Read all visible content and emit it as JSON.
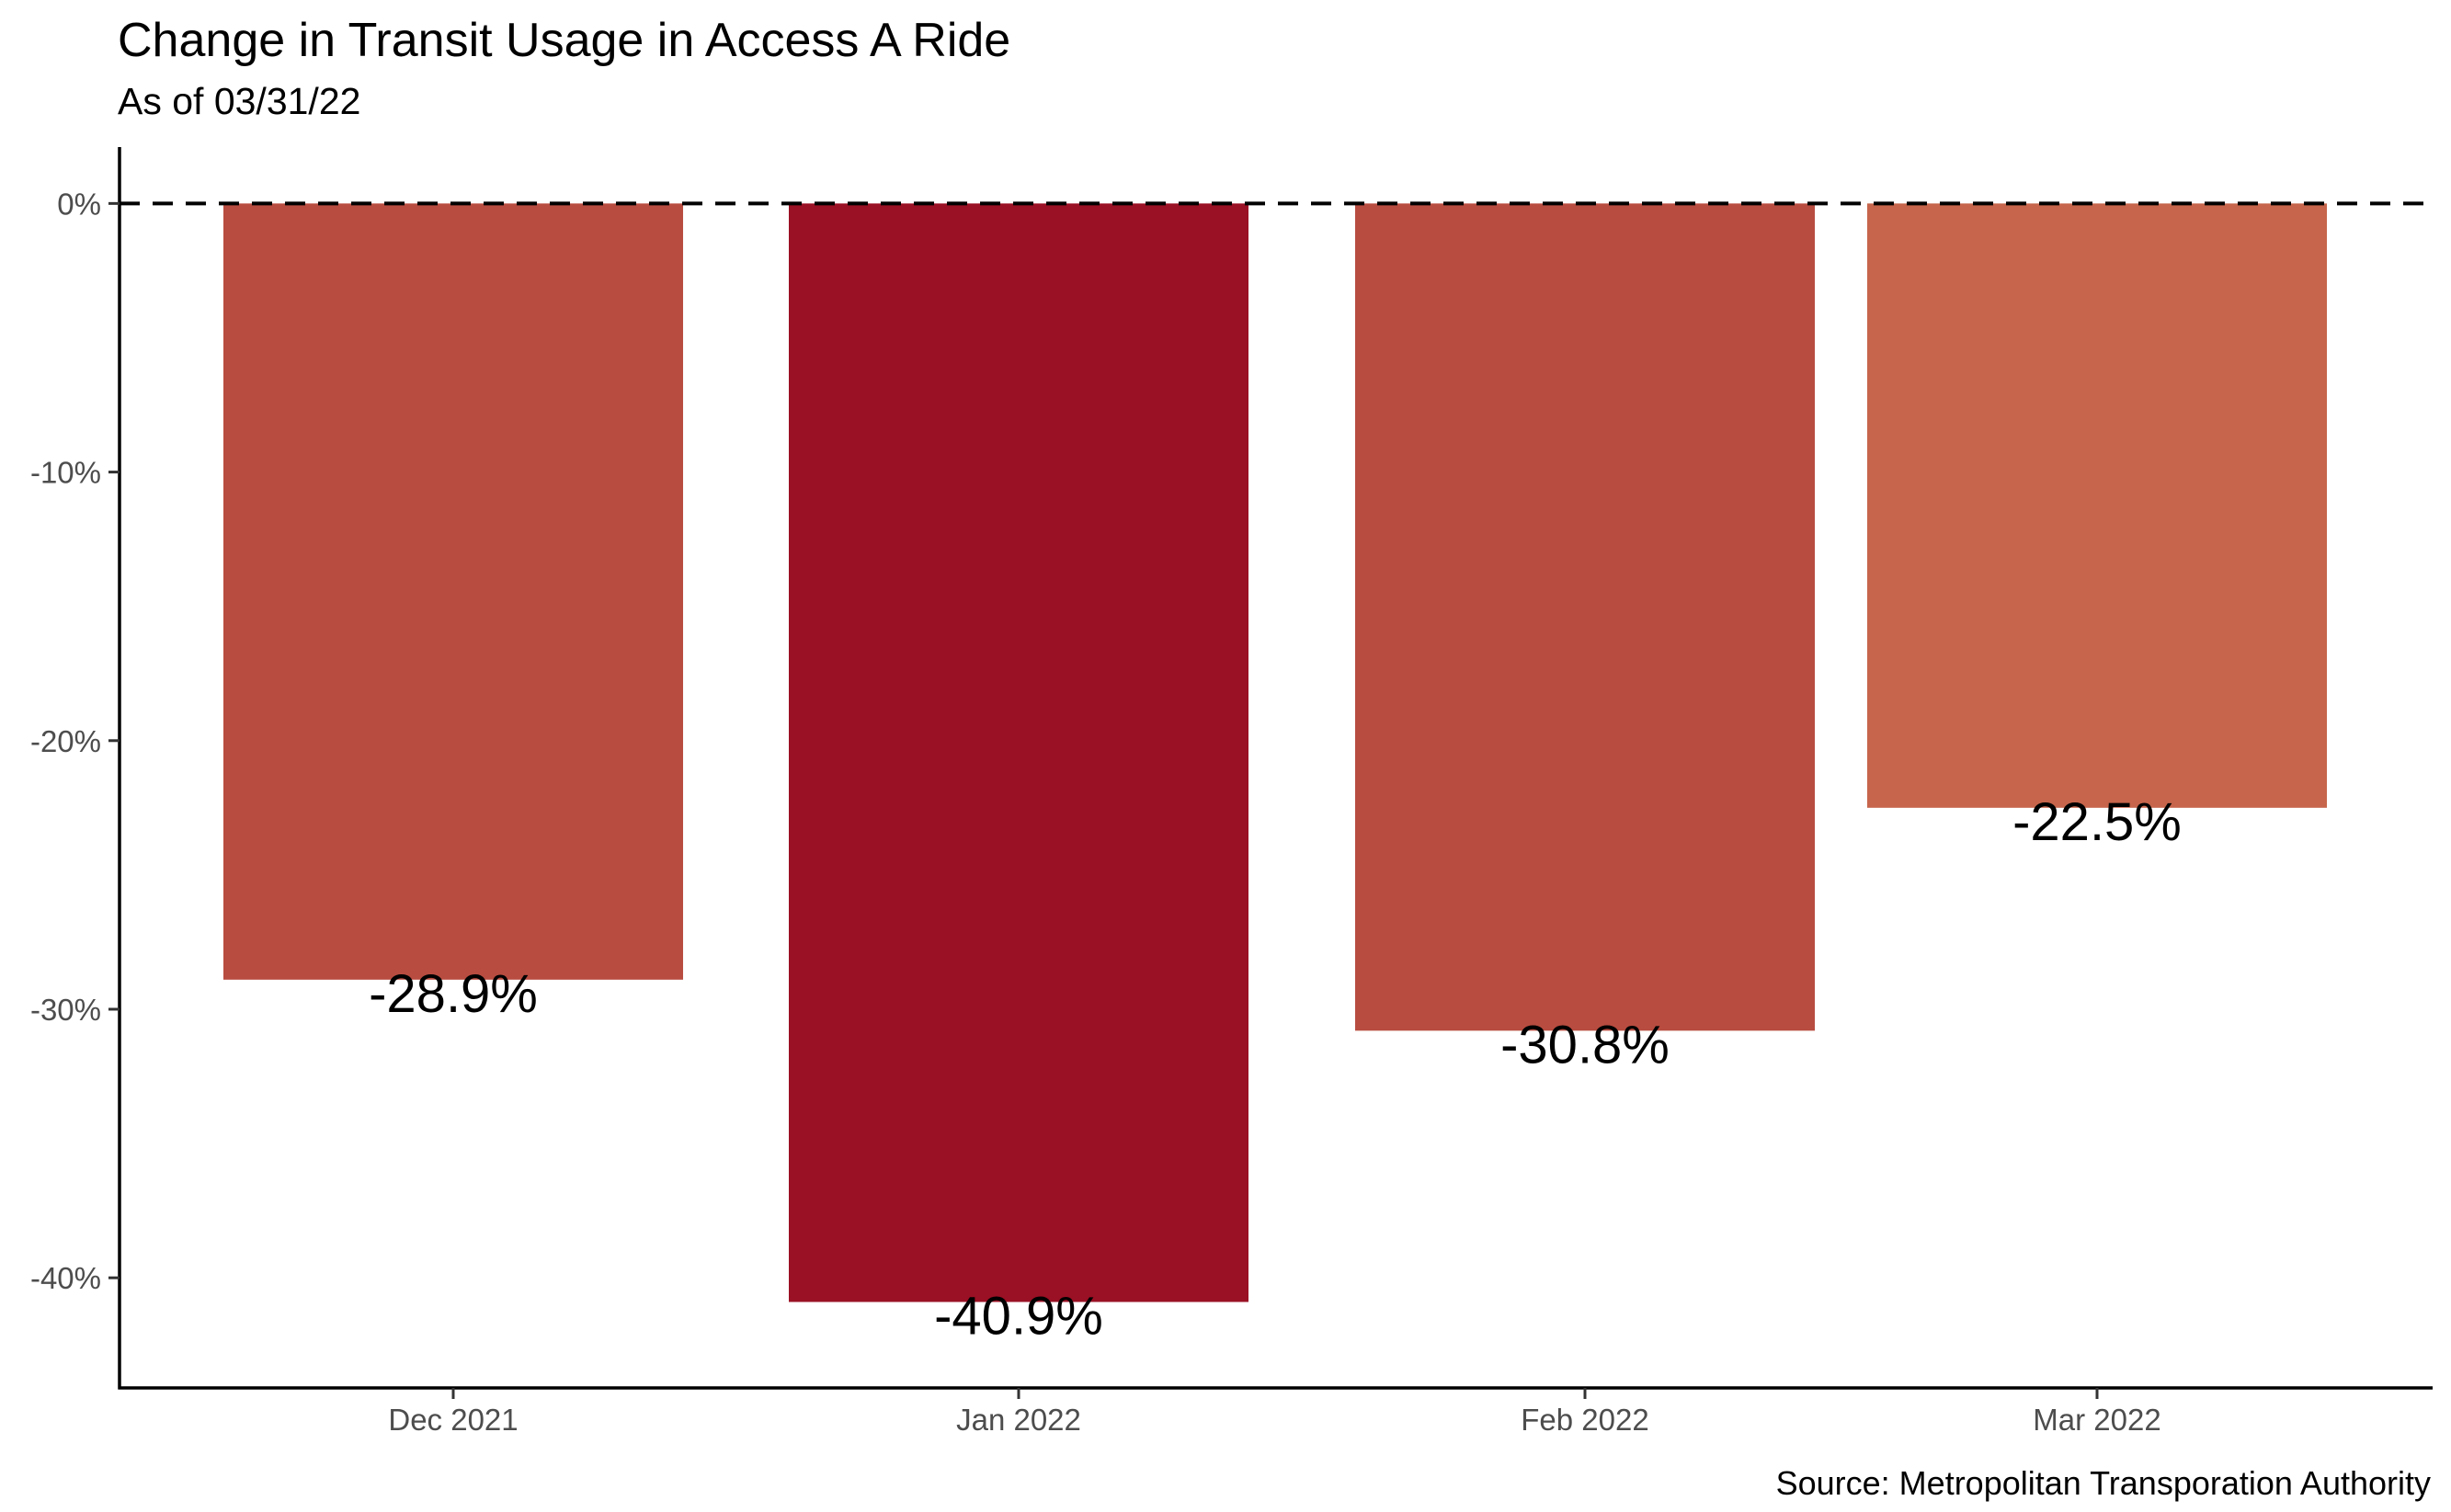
{
  "chart_data": {
    "type": "bar",
    "title": "Change in Transit Usage in Access A Ride",
    "subtitle": "As of 03/31/22",
    "caption": "Source: Metropolitan Transporation Authority",
    "xlabel": "",
    "ylabel": "",
    "categories": [
      "Dec 2021",
      "Jan 2022",
      "Feb 2022",
      "Mar 2022"
    ],
    "values": [
      -28.9,
      -40.9,
      -30.8,
      -22.5
    ],
    "value_labels": [
      "-28.9%",
      "-40.9%",
      "-30.8%",
      "-22.5%"
    ],
    "bar_colors": [
      "#B84C40",
      "#9A1024",
      "#B84C40",
      "#C6654B"
    ],
    "y_ticks": [
      0,
      -10,
      -20,
      -30,
      -40
    ],
    "y_tick_labels": [
      "0%",
      "-10%",
      "-20%",
      "-30%",
      "-40%"
    ],
    "ylim": [
      -44.1,
      2.1
    ],
    "reference_line": 0,
    "grid": false,
    "legend": "none"
  }
}
